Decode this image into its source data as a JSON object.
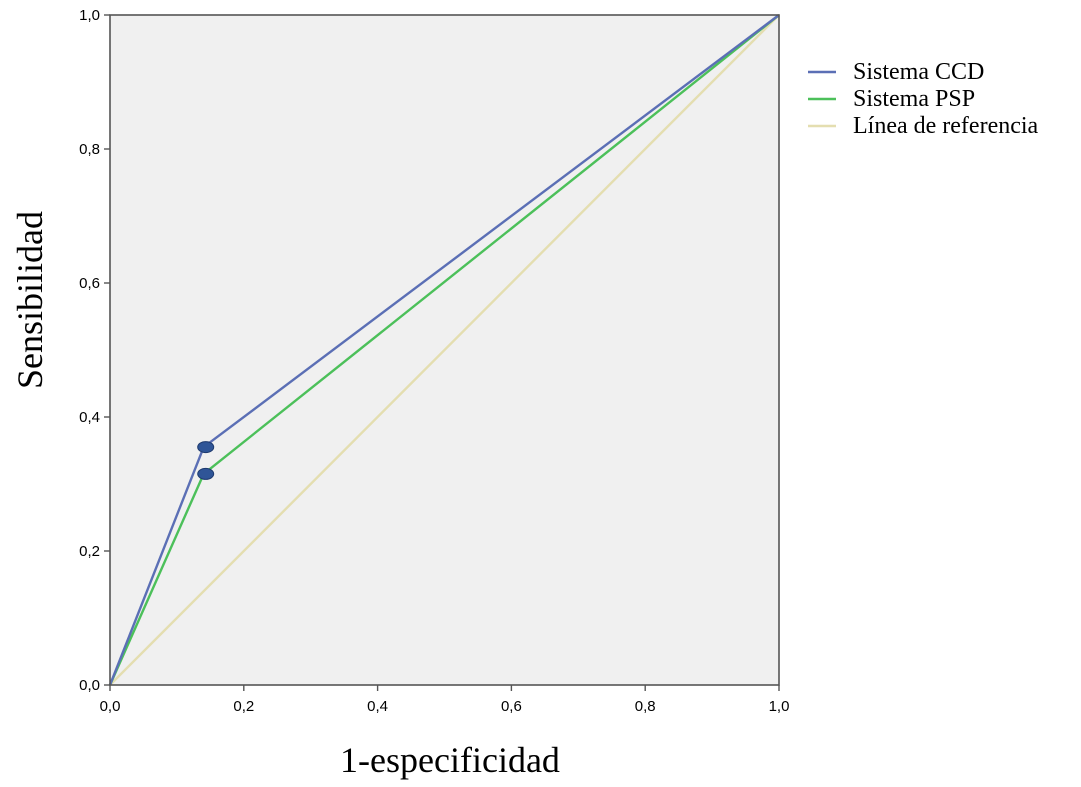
{
  "chart_data": {
    "type": "line",
    "title": "",
    "xlabel": "1-especificidad",
    "ylabel": "Sensibilidad",
    "xlim": [
      0,
      1
    ],
    "ylim": [
      0,
      1
    ],
    "x_ticks": [
      "0,0",
      "0,2",
      "0,4",
      "0,6",
      "0,8",
      "1,0"
    ],
    "y_ticks": [
      "0,0",
      "0,2",
      "0,4",
      "0,6",
      "0,8",
      "1,0"
    ],
    "grid": false,
    "plot_background": "#f0f0f0",
    "legend_position": "right",
    "series": [
      {
        "name": "Sistema CCD",
        "color": "#5b6fb5",
        "points": [
          [
            0,
            0
          ],
          [
            0.14,
            0.355
          ],
          [
            1,
            1
          ]
        ],
        "marker_index": 1
      },
      {
        "name": "Sistema PSP",
        "color": "#4cc05a",
        "points": [
          [
            0,
            0
          ],
          [
            0.14,
            0.315
          ],
          [
            1,
            1
          ]
        ],
        "marker_index": 1
      },
      {
        "name": "Línea de referencia",
        "color": "#e4deb0",
        "points": [
          [
            0,
            0
          ],
          [
            1,
            1
          ]
        ]
      }
    ],
    "marker_color": "#2f5597"
  }
}
